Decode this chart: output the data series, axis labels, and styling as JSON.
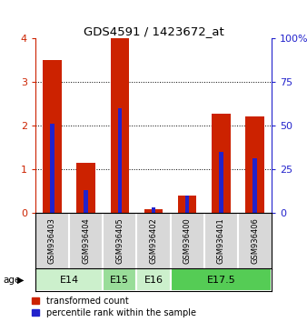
{
  "title": "GDS4591 / 1423672_at",
  "samples": [
    "GSM936403",
    "GSM936404",
    "GSM936405",
    "GSM936402",
    "GSM936400",
    "GSM936401",
    "GSM936406"
  ],
  "transformed_count": [
    3.5,
    1.15,
    4.0,
    0.08,
    0.38,
    2.28,
    2.22
  ],
  "percentile_rank": [
    51,
    13,
    60,
    3,
    10,
    35,
    31
  ],
  "age_groups": [
    {
      "label": "E14",
      "start": 0,
      "end": 2,
      "color": "#ccf0cc"
    },
    {
      "label": "E15",
      "start": 2,
      "end": 3,
      "color": "#99dd99"
    },
    {
      "label": "E16",
      "start": 3,
      "end": 4,
      "color": "#ccf0cc"
    },
    {
      "label": "E17.5",
      "start": 4,
      "end": 7,
      "color": "#55cc55"
    }
  ],
  "bar_color_red": "#cc2200",
  "bar_color_blue": "#2222cc",
  "ylim_left": [
    0,
    4
  ],
  "ylim_right": [
    0,
    100
  ],
  "yticks_left": [
    0,
    1,
    2,
    3,
    4
  ],
  "yticks_right": [
    0,
    25,
    50,
    75,
    100
  ],
  "left_tick_color": "#cc2200",
  "right_tick_color": "#2222cc",
  "bg_color": "#d8d8d8",
  "legend_labels": [
    "transformed count",
    "percentile rank within the sample"
  ],
  "red_bar_width": 0.55,
  "blue_bar_width": 0.12
}
